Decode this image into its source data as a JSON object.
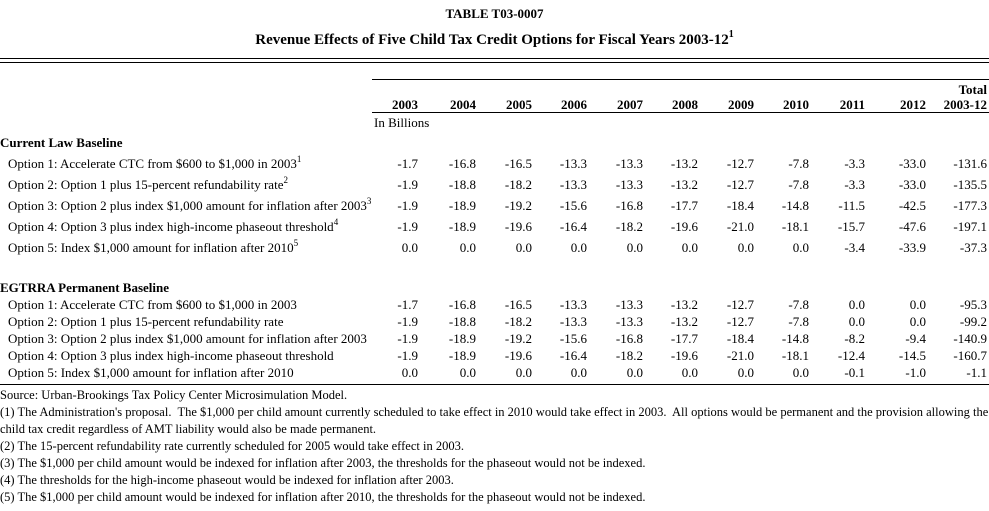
{
  "title": "TABLE T03-0007",
  "subtitle": "Revenue Effects of Five Child Tax Credit Options for Fiscal Years 2003-12",
  "subtitle_sup": "1",
  "table": {
    "unit_label": "In Billions",
    "total_header_top": "Total",
    "columns": [
      "2003",
      "2004",
      "2005",
      "2006",
      "2007",
      "2008",
      "2009",
      "2010",
      "2011",
      "2012",
      "2003-12"
    ],
    "sections": [
      {
        "header": "Current Law Baseline",
        "rows": [
          {
            "label": "Option 1: Accelerate CTC from $600 to $1,000 in 2003",
            "sup": "1",
            "values": [
              "-1.7",
              "-16.8",
              "-16.5",
              "-13.3",
              "-13.3",
              "-13.2",
              "-12.7",
              "-7.8",
              "-3.3",
              "-33.0",
              "-131.6"
            ]
          },
          {
            "label": "Option 2: Option 1 plus 15-percent refundability rate",
            "sup": "2",
            "values": [
              "-1.9",
              "-18.8",
              "-18.2",
              "-13.3",
              "-13.3",
              "-13.2",
              "-12.7",
              "-7.8",
              "-3.3",
              "-33.0",
              "-135.5"
            ]
          },
          {
            "label": "Option 3: Option 2 plus index $1,000 amount for inflation after 2003",
            "sup": "3",
            "values": [
              "-1.9",
              "-18.9",
              "-19.2",
              "-15.6",
              "-16.8",
              "-17.7",
              "-18.4",
              "-14.8",
              "-11.5",
              "-42.5",
              "-177.3"
            ]
          },
          {
            "label": "Option 4: Option 3 plus index high-income phaseout threshold",
            "sup": "4",
            "values": [
              "-1.9",
              "-18.9",
              "-19.6",
              "-16.4",
              "-18.2",
              "-19.6",
              "-21.0",
              "-18.1",
              "-15.7",
              "-47.6",
              "-197.1"
            ]
          },
          {
            "label": "Option 5: Index $1,000 amount for inflation after 2010",
            "sup": "5",
            "values": [
              "0.0",
              "0.0",
              "0.0",
              "0.0",
              "0.0",
              "0.0",
              "0.0",
              "0.0",
              "-3.4",
              "-33.9",
              "-37.3"
            ]
          }
        ]
      },
      {
        "header": "EGTRRA Permanent Baseline",
        "rows": [
          {
            "label": "Option 1: Accelerate CTC from $600 to $1,000 in 2003",
            "sup": "",
            "values": [
              "-1.7",
              "-16.8",
              "-16.5",
              "-13.3",
              "-13.3",
              "-13.2",
              "-12.7",
              "-7.8",
              "0.0",
              "0.0",
              "-95.3"
            ]
          },
          {
            "label": "Option 2: Option 1 plus 15-percent refundability rate",
            "sup": "",
            "values": [
              "-1.9",
              "-18.8",
              "-18.2",
              "-13.3",
              "-13.3",
              "-13.2",
              "-12.7",
              "-7.8",
              "0.0",
              "0.0",
              "-99.2"
            ]
          },
          {
            "label": "Option 3: Option 2 plus index $1,000 amount for inflation after 2003",
            "sup": "",
            "values": [
              "-1.9",
              "-18.9",
              "-19.2",
              "-15.6",
              "-16.8",
              "-17.7",
              "-18.4",
              "-14.8",
              "-8.2",
              "-9.4",
              "-140.9"
            ]
          },
          {
            "label": "Option 4: Option 3 plus index high-income phaseout threshold",
            "sup": "",
            "values": [
              "-1.9",
              "-18.9",
              "-19.6",
              "-16.4",
              "-18.2",
              "-19.6",
              "-21.0",
              "-18.1",
              "-12.4",
              "-14.5",
              "-160.7"
            ]
          },
          {
            "label": "Option 5: Index $1,000 amount for inflation after 2010",
            "sup": "",
            "values": [
              "0.0",
              "0.0",
              "0.0",
              "0.0",
              "0.0",
              "0.0",
              "0.0",
              "0.0",
              "-0.1",
              "-1.0",
              "-1.1"
            ]
          }
        ]
      }
    ]
  },
  "footer": {
    "source": "Source: Urban-Brookings Tax Policy Center Microsimulation Model.",
    "notes": [
      "(1) The Administration's proposal.  The $1,000 per child amount currently scheduled to take effect in 2010 would take effect in 2003.  All options would be permanent and the provision allowing the child tax credit regardless of AMT liability would also be made permanent.",
      "(2) The 15-percent refundability rate currently scheduled for 2005 would take effect in 2003.",
      "(3) The $1,000 per child amount would be indexed for inflation after 2003, the thresholds for the phaseout would not be indexed.",
      "(4) The thresholds for the high-income phaseout would be indexed for inflation after 2003.",
      "(5) The $1,000 per child amount would be indexed for inflation after 2010, the thresholds for the phaseout would not be indexed."
    ]
  }
}
